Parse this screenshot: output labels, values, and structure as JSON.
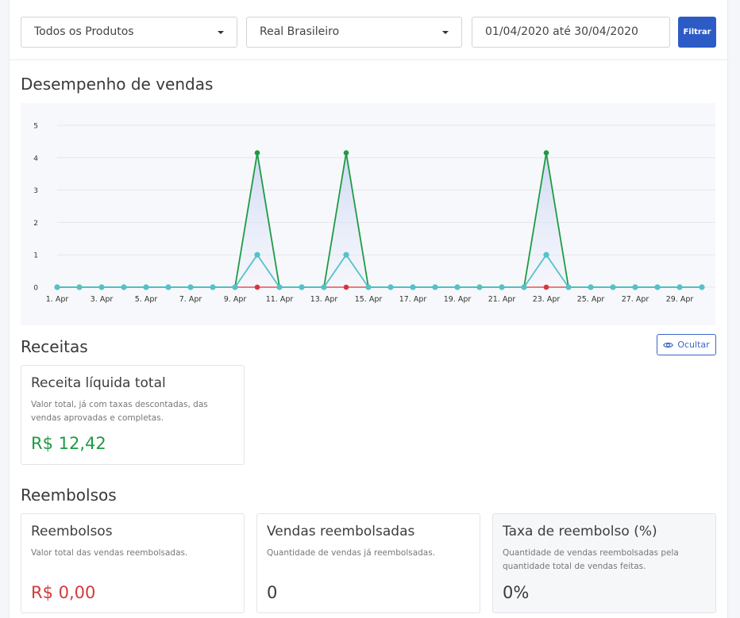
{
  "filters": {
    "product_select": "Todos os Produtos",
    "currency_select": "Real Brasileiro",
    "date_range": "01/04/2020 até 30/04/2020",
    "filter_button": "Filtrar"
  },
  "sales": {
    "title": "Desempenho de vendas"
  },
  "chart_data": {
    "type": "line",
    "x": [
      1,
      2,
      3,
      4,
      5,
      6,
      7,
      8,
      9,
      10,
      11,
      12,
      13,
      14,
      15,
      16,
      17,
      18,
      19,
      20,
      21,
      22,
      23,
      24,
      25,
      26,
      27,
      28,
      29,
      30
    ],
    "x_tick_labels": [
      "1. Apr",
      "3. Apr",
      "5. Apr",
      "7. Apr",
      "9. Apr",
      "11. Apr",
      "13. Apr",
      "15. Apr",
      "17. Apr",
      "19. Apr",
      "21. Apr",
      "23. Apr",
      "25. Apr",
      "27. Apr",
      "29. Apr"
    ],
    "x_tick_values": [
      1,
      3,
      5,
      7,
      9,
      11,
      13,
      15,
      17,
      19,
      21,
      23,
      25,
      27,
      29
    ],
    "y_ticks": [
      0,
      1,
      2,
      3,
      4,
      5
    ],
    "ylim": [
      0,
      5
    ],
    "grid": true,
    "series": [
      {
        "color": "#1e9b43",
        "values": [
          0,
          0,
          0,
          0,
          0,
          0,
          0,
          0,
          0,
          4.15,
          0,
          0,
          0,
          4.15,
          0,
          0,
          0,
          0,
          0,
          0,
          0,
          0,
          4.15,
          0,
          0,
          0,
          0,
          0,
          0,
          0
        ]
      },
      {
        "color": "#55c1c9",
        "values": [
          0,
          0,
          0,
          0,
          0,
          0,
          0,
          0,
          0,
          1,
          0,
          0,
          0,
          1,
          0,
          0,
          0,
          0,
          0,
          0,
          0,
          0,
          1,
          0,
          0,
          0,
          0,
          0,
          0,
          0
        ]
      },
      {
        "color": "#d9363e",
        "values": [
          0,
          0,
          0,
          0,
          0,
          0,
          0,
          0,
          0,
          0,
          0,
          0,
          0,
          0,
          0,
          0,
          0,
          0,
          0,
          0,
          0,
          0,
          0,
          0,
          0,
          0,
          0,
          0,
          0,
          0
        ]
      }
    ]
  },
  "revenue": {
    "title": "Receitas",
    "hide_button": "Ocultar",
    "hide_icon": "eye-icon",
    "net_card": {
      "title": "Receita líquida total",
      "description": "Valor total, já com taxas descontadas, das vendas aprovadas e completas.",
      "value": "R$ 12,42"
    }
  },
  "refunds": {
    "title": "Reembolsos",
    "cards": [
      {
        "title": "Reembolsos",
        "description": "Valor total das vendas reembolsadas.",
        "value": "R$ 0,00"
      },
      {
        "title": "Vendas reembolsadas",
        "description": "Quantidade de vendas já reembolsadas.",
        "value": "0"
      },
      {
        "title": "Taxa de reembolso (%)",
        "description": "Quantidade de vendas reembolsadas pela quantidade total de vendas feitas.",
        "value": "0%"
      }
    ]
  }
}
